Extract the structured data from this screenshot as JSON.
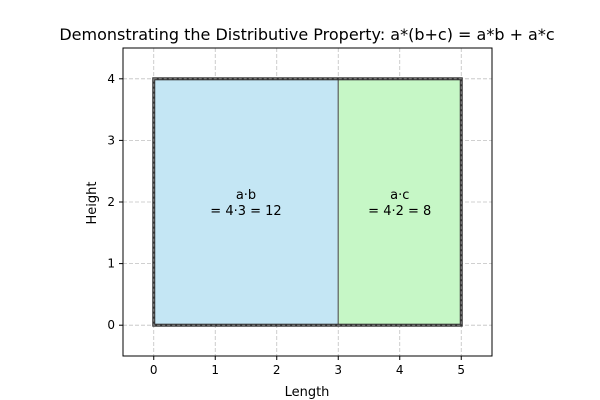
{
  "chart_data": {
    "type": "area",
    "title": "Demonstrating the Distributive Property: a*(b+c) = a*b + a*c",
    "xlabel": "Length",
    "ylabel": "Height",
    "xlim": [
      -0.5,
      5.5
    ],
    "ylim": [
      -0.5,
      4.5
    ],
    "xticks": [
      0,
      1,
      2,
      3,
      4,
      5
    ],
    "yticks": [
      0,
      1,
      2,
      3,
      4
    ],
    "grid": true,
    "grid_style": "dashed",
    "outer_rectangle": {
      "x": [
        0,
        5
      ],
      "y": [
        0,
        4
      ],
      "color": "#333333"
    },
    "regions": [
      {
        "x": [
          0,
          3
        ],
        "y": [
          0,
          4
        ],
        "color": "#c4e6f4",
        "label_line1": "a·b",
        "label_line2": "= 4·3 = 12"
      },
      {
        "x": [
          3,
          5
        ],
        "y": [
          0,
          4
        ],
        "color": "#c6f7c6",
        "label_line1": "a·c",
        "label_line2": "= 4·2 = 8"
      }
    ]
  }
}
